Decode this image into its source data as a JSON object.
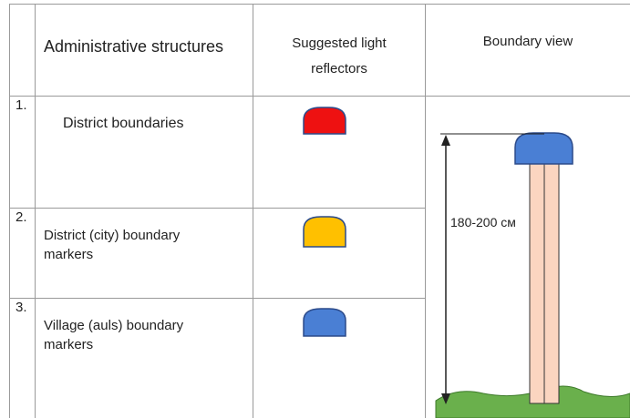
{
  "header": [
    "Administrative structures",
    "Suggested light reflectors",
    "Boundary view"
  ],
  "rows": [
    {
      "number": "1.",
      "name": "District boundaries"
    },
    {
      "number": "2.",
      "name": "District (city) boundary markers"
    },
    {
      "number": "3.",
      "name": "Village (auls) boundary markers"
    }
  ],
  "boundary_view": {
    "height_label": "180-200 см"
  }
}
